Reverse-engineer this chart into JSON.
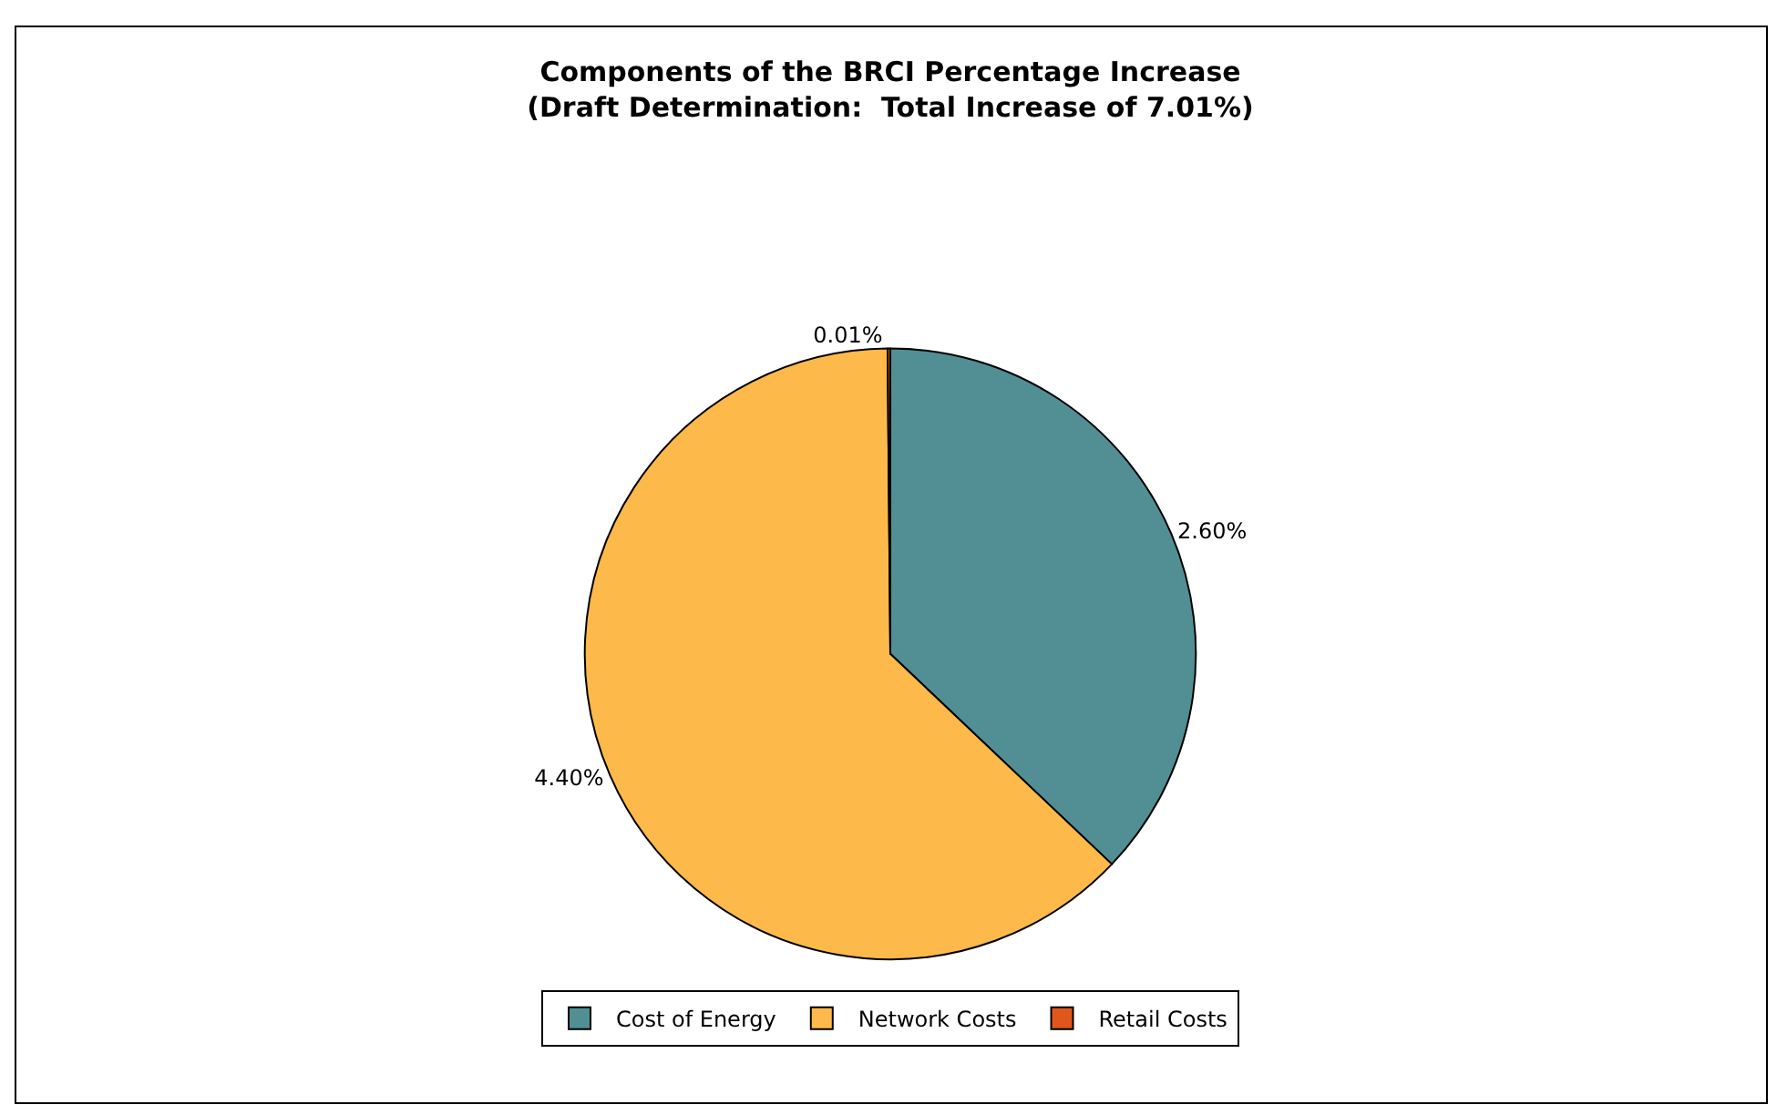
{
  "chart_data": {
    "type": "pie",
    "title": "Components of the BRCI Percentage Increase\n(Draft Determination:  Total Increase of 7.01%)",
    "categories": [
      "Cost of Energy",
      "Network Costs",
      "Retail Costs"
    ],
    "values": [
      2.6,
      4.4,
      0.01
    ],
    "value_labels": [
      "2.60%",
      "4.40%",
      "0.01%"
    ],
    "colors": [
      "#518f94",
      "#fdb94a",
      "#e0561b"
    ],
    "legend": "bottom"
  }
}
